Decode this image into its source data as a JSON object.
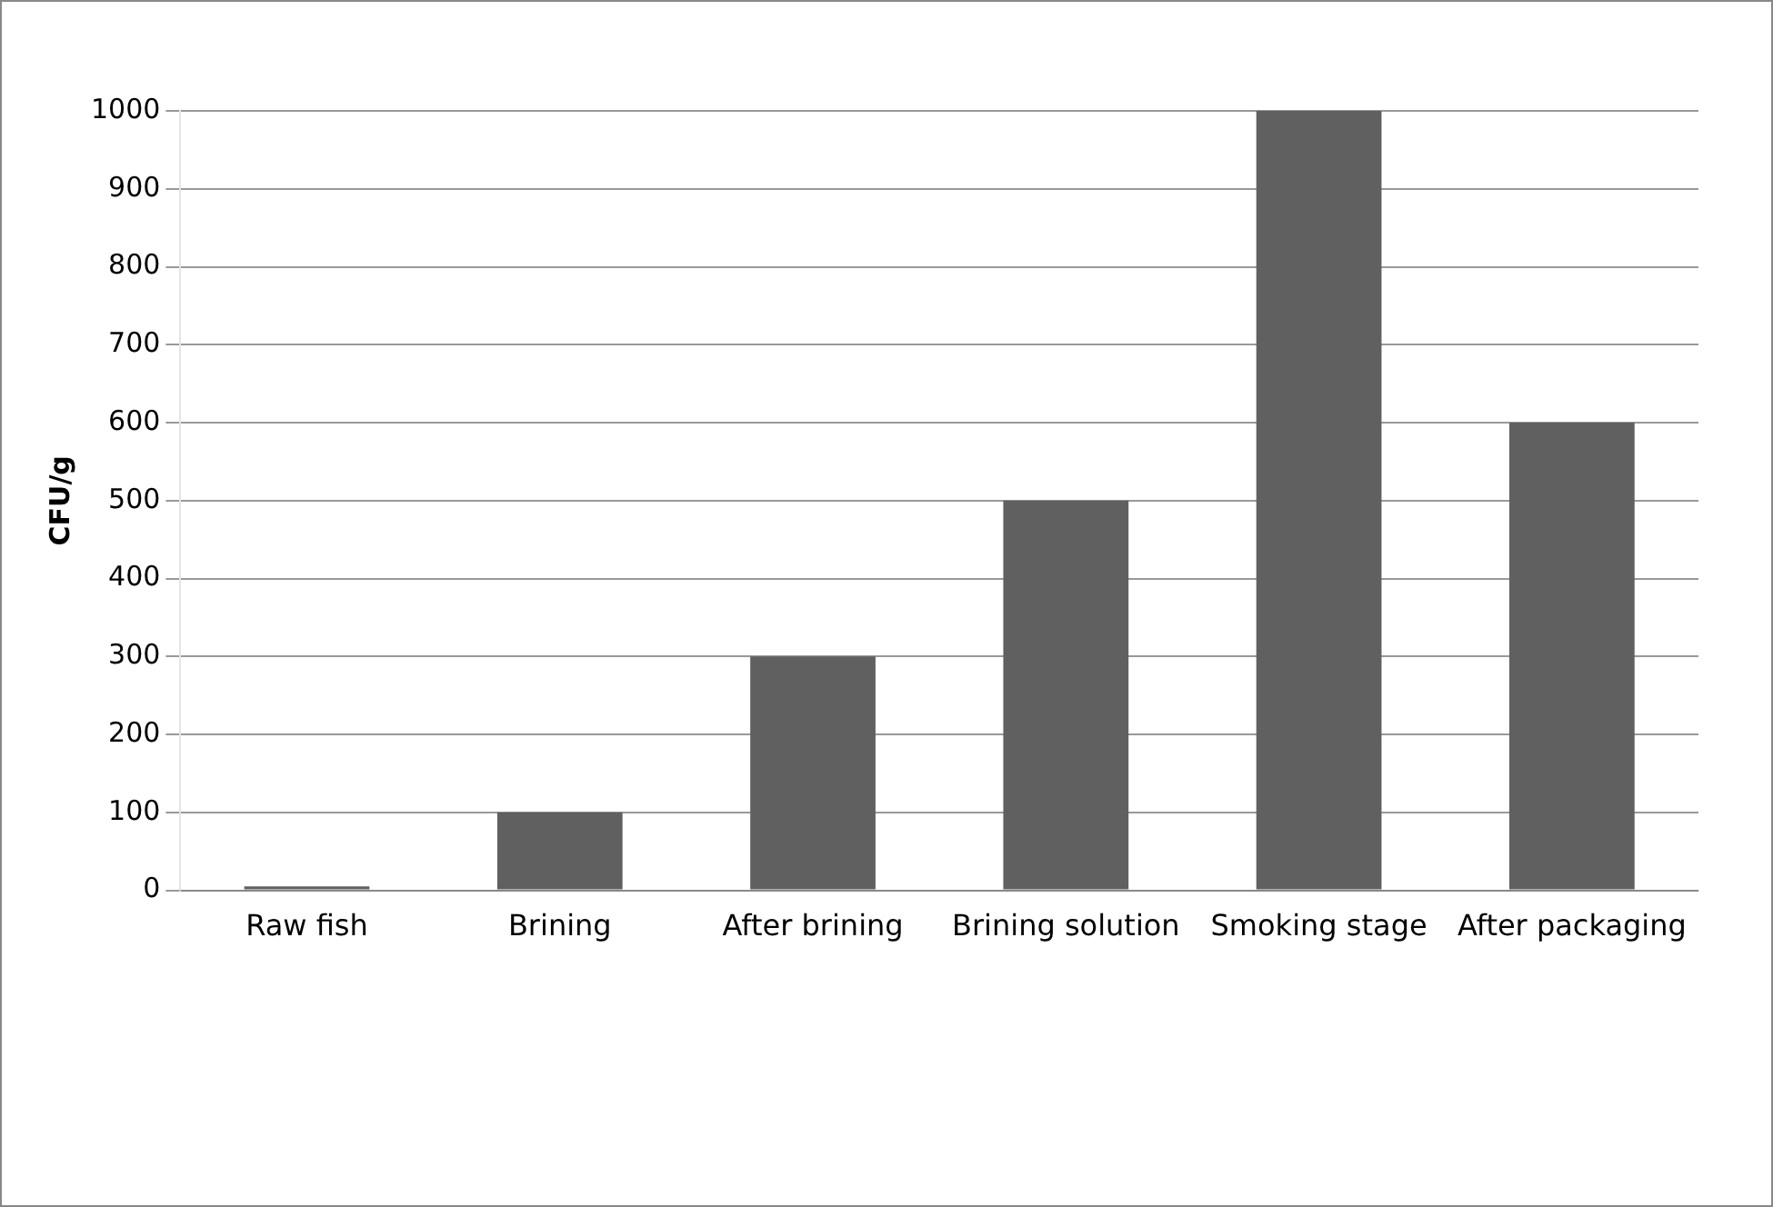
{
  "chart_data": {
    "type": "bar",
    "ylabel": "CFU/g",
    "categories": [
      "Raw fish",
      "Brining",
      "After brining",
      "Brining solution",
      "Smoking stage",
      "After packaging"
    ],
    "values": [
      5,
      100,
      300,
      500,
      1000,
      600
    ],
    "color": "#606060",
    "ylim": [
      0,
      1000
    ],
    "yticks": [
      0,
      100,
      200,
      300,
      400,
      500,
      600,
      700,
      800,
      900,
      1000
    ],
    "grid": "y"
  }
}
